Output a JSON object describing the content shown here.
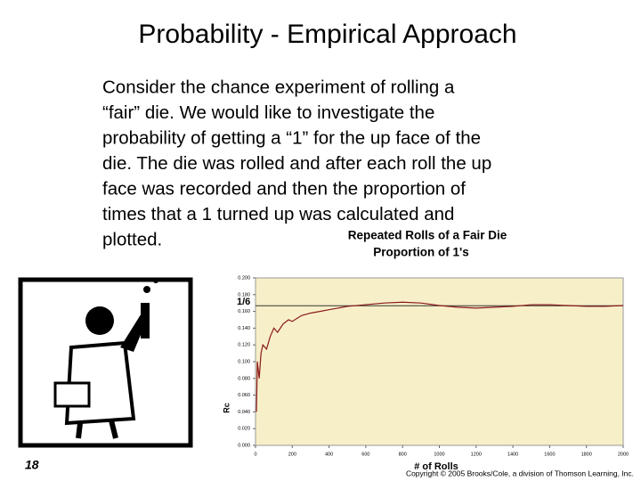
{
  "slide": {
    "title": "Probability - Empirical Approach",
    "body_lines": [
      "Consider the chance experiment of rolling a",
      "“fair” die. We would like to investigate the",
      "probability of getting a “1” for the up face of the",
      "die. The die was rolled and after each roll the up",
      "face was recorded and then the proportion of",
      "times that a 1 turned up was calculated and",
      "plotted."
    ],
    "page_number": "18",
    "copyright": "Copyright © 2005 Brooks/Cole, a division of Thomson Learning, Inc."
  },
  "chart_data": {
    "type": "line",
    "title": "Repeated Rolls of a Fair Die",
    "subtitle": "Proportion of 1's",
    "x_label": "# of Rolls",
    "y_label": "Rc",
    "x": [
      5,
      10,
      20,
      30,
      40,
      60,
      80,
      100,
      120,
      150,
      180,
      200,
      250,
      300,
      350,
      400,
      450,
      500,
      600,
      700,
      800,
      900,
      1000,
      1100,
      1200,
      1300,
      1400,
      1500,
      1600,
      1700,
      1800,
      1900,
      2000
    ],
    "series": [
      {
        "name": "Proportion of 1's",
        "color": "#8b1a1a",
        "values": [
          0.04,
          0.1,
          0.08,
          0.11,
          0.12,
          0.115,
          0.13,
          0.14,
          0.135,
          0.145,
          0.15,
          0.148,
          0.155,
          0.158,
          0.16,
          0.162,
          0.164,
          0.166,
          0.168,
          0.17,
          0.171,
          0.17,
          0.167,
          0.165,
          0.164,
          0.165,
          0.166,
          0.168,
          0.168,
          0.167,
          0.166,
          0.166,
          0.167
        ]
      }
    ],
    "xlim": [
      0,
      2000
    ],
    "xticks": [
      0,
      200,
      400,
      600,
      800,
      1000,
      1200,
      1400,
      1600,
      1800,
      2000
    ],
    "ylim": [
      0,
      0.2
    ],
    "yticks": [
      {
        "value": 0,
        "label": "0.000"
      },
      {
        "value": 0.02,
        "label": "0.020"
      },
      {
        "value": 0.04,
        "label": "0.040"
      },
      {
        "value": 0.06,
        "label": "0.060"
      },
      {
        "value": 0.08,
        "label": "0.080"
      },
      {
        "value": 0.1,
        "label": "0.100"
      },
      {
        "value": 0.12,
        "label": "0.120"
      },
      {
        "value": 0.14,
        "label": "0.140"
      },
      {
        "value": 0.16,
        "label": "0.160"
      },
      {
        "value": 0.18,
        "label": "0.180"
      },
      {
        "value": 0.2,
        "label": "0.200"
      }
    ],
    "reference_line": {
      "label": "1/6",
      "value": 0.1667,
      "color": "#333333"
    },
    "background": "#f7efc8"
  }
}
